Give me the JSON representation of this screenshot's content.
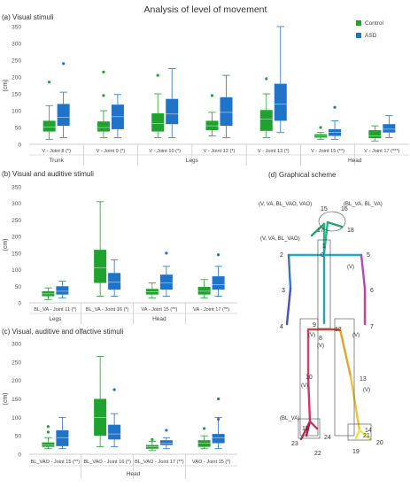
{
  "title": "Analysis of level of movement",
  "legend": [
    {
      "name": "Control",
      "color": "#1fa22e"
    },
    {
      "name": "ASD",
      "color": "#1f73c8"
    }
  ],
  "colors": {
    "control": "#1fa22e",
    "asd": "#1f73c8",
    "axis": "#bfbfbf",
    "text": "#404040"
  },
  "chart_data": [
    {
      "panel": "a",
      "title": "(a) Visual stimuli",
      "type": "boxplot",
      "ylabel": "(cm)",
      "ylim": [
        0,
        350
      ],
      "yticks": [
        0,
        50,
        100,
        150,
        200,
        250,
        300,
        350
      ],
      "grid": false,
      "legend_position": "top-right",
      "categories": [
        "V - Joint 8 (*)",
        "V - Joint 9 (*)",
        "V - Joint 10 (*)",
        "V - Joint 12 (*)",
        "V - Joint 13 (*)",
        "V - Joint 15 (**)",
        "V - Joint 17 (***)"
      ],
      "groups": [
        {
          "label": "Trunk",
          "categories": [
            "V - Joint 8 (*)"
          ]
        },
        {
          "label": "Legs",
          "categories": [
            "V - Joint 9 (*)",
            "V - Joint 10 (*)",
            "V - Joint 12 (*)",
            "V - Joint 13 (*)"
          ]
        },
        {
          "label": "Head",
          "categories": [
            "V - Joint 15 (**)",
            "V - Joint 17 (***)"
          ]
        }
      ],
      "series": [
        {
          "name": "Control",
          "boxes": [
            {
              "min": 15,
              "q1": 38,
              "median": 52,
              "q3": 70,
              "max": 115,
              "outliers": [
                185
              ]
            },
            {
              "min": 20,
              "q1": 38,
              "median": 50,
              "q3": 68,
              "max": 100,
              "outliers": [
                145,
                215
              ]
            },
            {
              "min": 20,
              "q1": 38,
              "median": 62,
              "q3": 92,
              "max": 150,
              "outliers": [
                205
              ]
            },
            {
              "min": 25,
              "q1": 42,
              "median": 55,
              "q3": 70,
              "max": 95,
              "outliers": [
                145
              ]
            },
            {
              "min": 20,
              "q1": 40,
              "median": 75,
              "q3": 102,
              "max": 150,
              "outliers": [
                195
              ]
            },
            {
              "min": 15,
              "q1": 20,
              "median": 25,
              "q3": 30,
              "max": 35,
              "outliers": [
                50
              ]
            },
            {
              "min": 10,
              "q1": 18,
              "median": 25,
              "q3": 42,
              "max": 55,
              "outliers": []
            }
          ]
        },
        {
          "name": "ASD",
          "boxes": [
            {
              "min": 20,
              "q1": 55,
              "median": 80,
              "q3": 120,
              "max": 155,
              "outliers": [
                240
              ]
            },
            {
              "min": 20,
              "q1": 45,
              "median": 82,
              "q3": 118,
              "max": 148,
              "outliers": []
            },
            {
              "min": 20,
              "q1": 60,
              "median": 90,
              "q3": 135,
              "max": 225,
              "outliers": []
            },
            {
              "min": 20,
              "q1": 55,
              "median": 95,
              "q3": 140,
              "max": 205,
              "outliers": []
            },
            {
              "min": 35,
              "q1": 70,
              "median": 120,
              "q3": 180,
              "max": 350,
              "outliers": []
            },
            {
              "min": 15,
              "q1": 25,
              "median": 35,
              "q3": 45,
              "max": 70,
              "outliers": [
                110
              ]
            },
            {
              "min": 20,
              "q1": 35,
              "median": 45,
              "q3": 60,
              "max": 85,
              "outliers": []
            }
          ]
        }
      ]
    },
    {
      "panel": "b",
      "title": "(b) Visual and auditive stimuli",
      "type": "boxplot",
      "ylabel": "(cm)",
      "ylim": [
        0,
        350
      ],
      "yticks": [
        0,
        50,
        100,
        150,
        200,
        250,
        300,
        350
      ],
      "grid": false,
      "categories": [
        "BL_VA - Joint 11 (*)",
        "BL_VA - Joint 16 (*)",
        "VA - Joint 15 (**)",
        "VA - Joint 17 (**)"
      ],
      "groups": [
        {
          "label": "Legs",
          "categories": [
            "BL_VA - Joint 11 (*)"
          ]
        },
        {
          "label": "Head",
          "categories": [
            "BL_VA - Joint 16 (*)",
            "VA - Joint 15 (**)",
            "VA - Joint 17 (**)"
          ]
        }
      ],
      "series": [
        {
          "name": "Control",
          "boxes": [
            {
              "min": 10,
              "q1": 20,
              "median": 27,
              "q3": 35,
              "max": 45,
              "outliers": []
            },
            {
              "min": 20,
              "q1": 60,
              "median": 105,
              "q3": 160,
              "max": 305,
              "outliers": []
            },
            {
              "min": 15,
              "q1": 25,
              "median": 33,
              "q3": 42,
              "max": 60,
              "outliers": []
            },
            {
              "min": 15,
              "q1": 25,
              "median": 35,
              "q3": 48,
              "max": 70,
              "outliers": []
            }
          ]
        },
        {
          "name": "ASD",
          "boxes": [
            {
              "min": 15,
              "q1": 25,
              "median": 35,
              "q3": 50,
              "max": 65,
              "outliers": []
            },
            {
              "min": 20,
              "q1": 40,
              "median": 62,
              "q3": 90,
              "max": 130,
              "outliers": []
            },
            {
              "min": 20,
              "q1": 40,
              "median": 60,
              "q3": 85,
              "max": 110,
              "outliers": [
                150
              ]
            },
            {
              "min": 20,
              "q1": 40,
              "median": 55,
              "q3": 80,
              "max": 110,
              "outliers": [
                145
              ]
            }
          ]
        }
      ]
    },
    {
      "panel": "c",
      "title": "(c) Visual, auditive and olfactive stimuli",
      "type": "boxplot",
      "ylabel": "(cm)",
      "ylim": [
        0,
        300
      ],
      "yticks": [
        0,
        50,
        100,
        150,
        200,
        250,
        300
      ],
      "grid": false,
      "categories": [
        "BL_VAO - Joint 15 (**)",
        "BL_VAO - Joint 16 (*)",
        "BL_VAO - Joint 17 (**)",
        "VAO - Joint 15 (*)"
      ],
      "groups": [
        {
          "label": "Head",
          "categories": [
            "BL_VAO - Joint 15 (**)",
            "BL_VAO - Joint 16 (*)",
            "BL_VAO - Joint 17 (**)",
            "VAO - Joint 15 (*)"
          ]
        }
      ],
      "series": [
        {
          "name": "Control",
          "boxes": [
            {
              "min": 15,
              "q1": 20,
              "median": 25,
              "q3": 32,
              "max": 45,
              "outliers": [
                60,
                75
              ]
            },
            {
              "min": 20,
              "q1": 50,
              "median": 100,
              "q3": 150,
              "max": 265,
              "outliers": []
            },
            {
              "min": 10,
              "q1": 15,
              "median": 20,
              "q3": 25,
              "max": 35,
              "outliers": [
                40
              ]
            },
            {
              "min": 15,
              "q1": 20,
              "median": 30,
              "q3": 38,
              "max": 50,
              "outliers": [
                70
              ]
            }
          ]
        },
        {
          "name": "ASD",
          "boxes": [
            {
              "min": 15,
              "q1": 22,
              "median": 45,
              "q3": 65,
              "max": 100,
              "outliers": []
            },
            {
              "min": 20,
              "q1": 40,
              "median": 55,
              "q3": 80,
              "max": 110,
              "outliers": [
                175
              ]
            },
            {
              "min": 15,
              "q1": 25,
              "median": 30,
              "q3": 38,
              "max": 45,
              "outliers": [
                65
              ]
            },
            {
              "min": 15,
              "q1": 30,
              "median": 45,
              "q3": 55,
              "max": 100,
              "outliers": [
                95,
                150
              ]
            }
          ]
        }
      ]
    }
  ],
  "scheme": {
    "title": "(d) Graphical scheme",
    "joints": [
      {
        "id": "0"
      },
      {
        "id": "1"
      },
      {
        "id": "2"
      },
      {
        "id": "3"
      },
      {
        "id": "4"
      },
      {
        "id": "5"
      },
      {
        "id": "6"
      },
      {
        "id": "7"
      },
      {
        "id": "8"
      },
      {
        "id": "9"
      },
      {
        "id": "10"
      },
      {
        "id": "11"
      },
      {
        "id": "12"
      },
      {
        "id": "13"
      },
      {
        "id": "14"
      },
      {
        "id": "15"
      },
      {
        "id": "16"
      },
      {
        "id": "17"
      },
      {
        "id": "18"
      },
      {
        "id": "19"
      },
      {
        "id": "20"
      },
      {
        "id": "21"
      },
      {
        "id": "22"
      },
      {
        "id": "23"
      },
      {
        "id": "24"
      }
    ],
    "annotations": [
      "(V, VA, BL_VAO, VAO)",
      "(BL_VA, BL_VA)",
      "(V, VA, BL_VAO)",
      "(V)",
      "(V)",
      "(V)",
      "(V)",
      "(V)",
      "(V)",
      "(BL_VA)"
    ]
  }
}
